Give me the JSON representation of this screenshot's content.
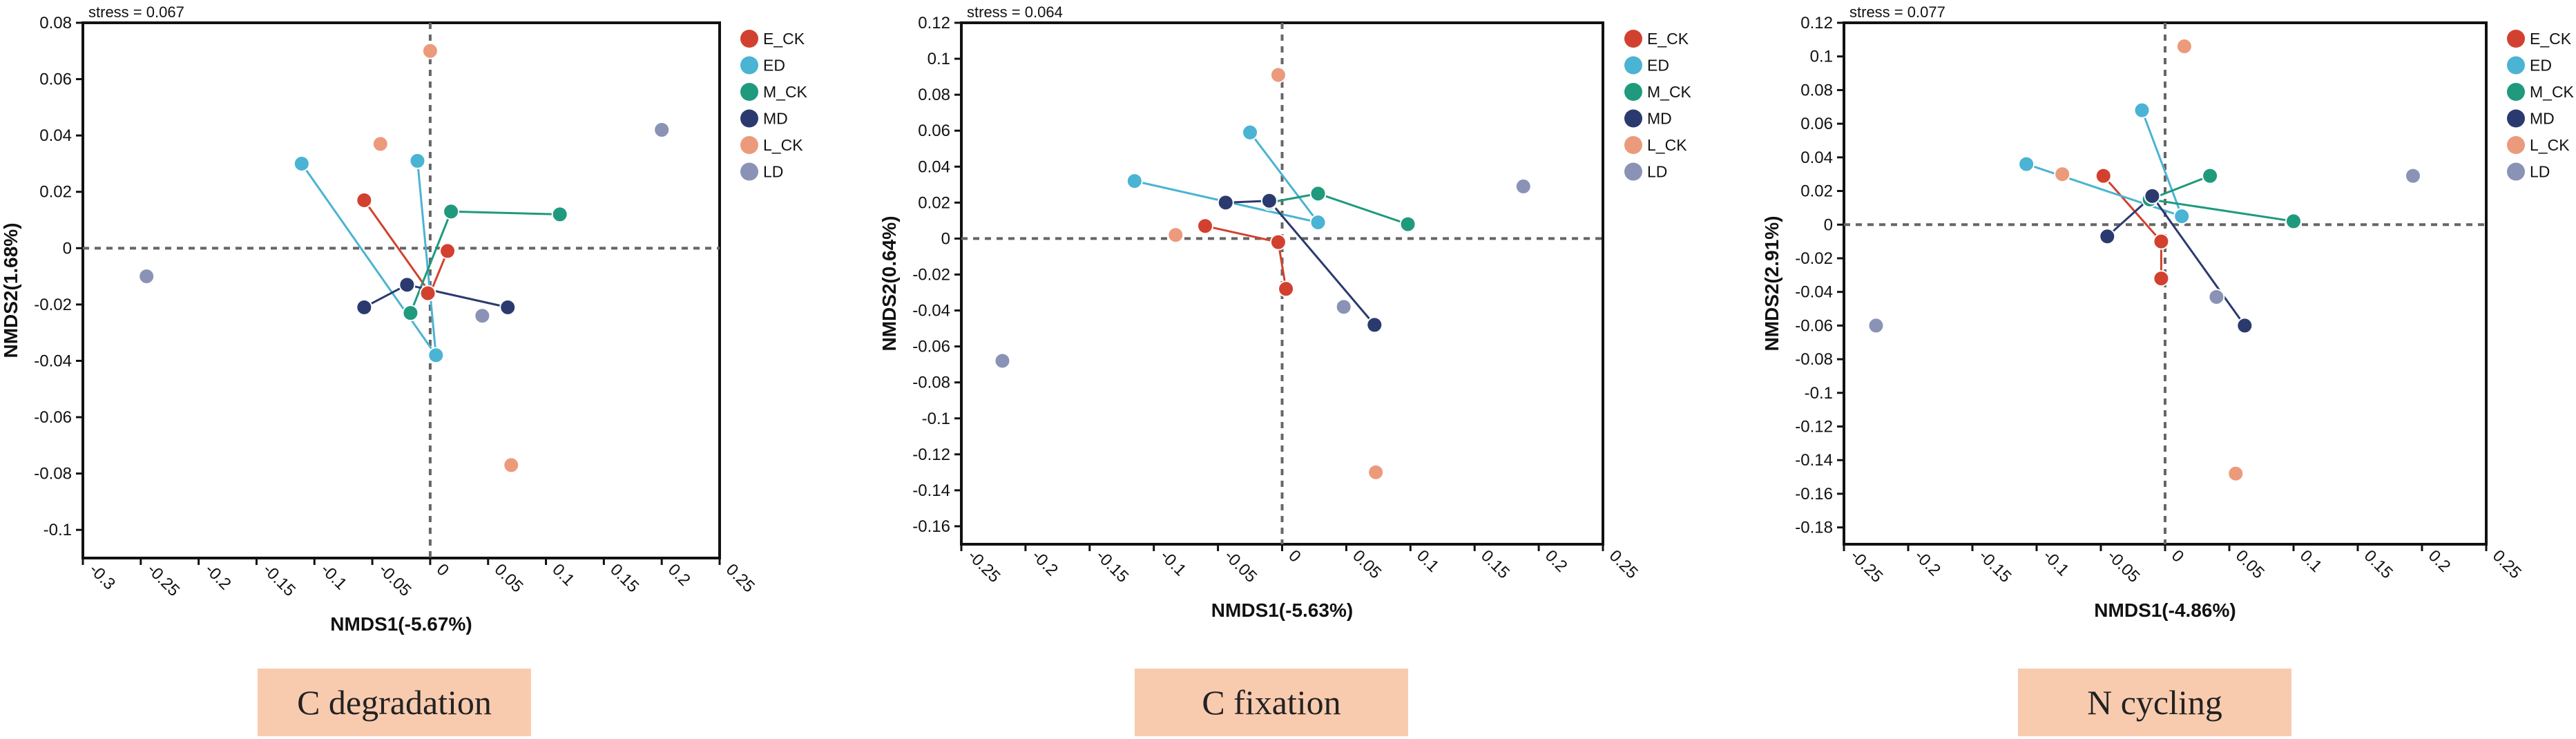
{
  "colors": {
    "E_CK": "#d2412f",
    "ED": "#4bb3d3",
    "M_CK": "#1f9a7c",
    "MD": "#2b3a6e",
    "L_CK": "#ec9a7c",
    "LD": "#8a93b5"
  },
  "chart_data": [
    {
      "type": "scatter",
      "stress_label": "stress = 0.067",
      "xlabel": "NMDS1(-5.67%)",
      "ylabel": "NMDS2(1.68%)",
      "xlim": [
        -0.3,
        0.25
      ],
      "ylim": [
        -0.11,
        0.08
      ],
      "xticks": [
        -0.3,
        -0.25,
        -0.2,
        -0.15,
        -0.1,
        -0.05,
        0,
        0.05,
        0.1,
        0.15,
        0.2,
        0.25
      ],
      "xtick_labels": [
        "-0.3",
        "-0.25",
        "-0.2",
        "-0.15",
        "-0.1",
        "-0.05",
        "0",
        "0.05",
        "0.1",
        "0.15",
        "0.2",
        "0.25"
      ],
      "yticks": [
        0.08,
        0.06,
        0.04,
        0.02,
        0,
        -0.02,
        -0.04,
        -0.06,
        -0.08,
        -0.1
      ],
      "ytick_labels": [
        "0.08",
        "0.06",
        "0.04",
        "0.02",
        "0",
        "-0.02",
        "-0.04",
        "-0.06",
        "-0.08",
        "-0.1"
      ],
      "legend": [
        "E_CK",
        "ED",
        "M_CK",
        "MD",
        "L_CK",
        "LD"
      ],
      "caption": "C degradation",
      "series": [
        {
          "name": "E_CK",
          "centroid": [
            0,
            -0.016
          ],
          "points": [
            [
              -0.057,
              0.017
            ],
            [
              0.015,
              -0.001
            ],
            [
              -0.002,
              -0.016
            ]
          ]
        },
        {
          "name": "ED",
          "centroid": [
            0.005,
            -0.038
          ],
          "points": [
            [
              -0.111,
              0.03
            ],
            [
              -0.011,
              0.031
            ],
            [
              0.005,
              -0.038
            ]
          ]
        },
        {
          "name": "M_CK",
          "centroid": [
            0.018,
            0.013
          ],
          "points": [
            [
              0.018,
              0.013
            ],
            [
              0.112,
              0.012
            ],
            [
              -0.017,
              -0.023
            ]
          ]
        },
        {
          "name": "MD",
          "centroid": [
            -0.02,
            -0.013
          ],
          "points": [
            [
              -0.057,
              -0.021
            ],
            [
              -0.02,
              -0.013
            ],
            [
              0.067,
              -0.021
            ]
          ]
        },
        {
          "name": "L_CK",
          "points": [
            [
              0,
              0.07
            ],
            [
              -0.043,
              0.037
            ],
            [
              0.07,
              -0.077
            ]
          ]
        },
        {
          "name": "LD",
          "points": [
            [
              -0.245,
              -0.01
            ],
            [
              0.2,
              0.042
            ],
            [
              0.045,
              -0.024
            ]
          ]
        }
      ]
    },
    {
      "type": "scatter",
      "stress_label": "stress = 0.064",
      "xlabel": "NMDS1(-5.63%)",
      "ylabel": "NMDS2(0.64%)",
      "xlim": [
        -0.25,
        0.25
      ],
      "ylim": [
        -0.17,
        0.12
      ],
      "xticks": [
        -0.25,
        -0.2,
        -0.15,
        -0.1,
        -0.05,
        0,
        0.05,
        0.1,
        0.15,
        0.2,
        0.25
      ],
      "xtick_labels": [
        "-0.25",
        "-0.2",
        "-0.15",
        "-0.1",
        "-0.05",
        "0",
        "0.05",
        "0.1",
        "0.15",
        "0.2",
        "0.25"
      ],
      "yticks": [
        0.12,
        0.1,
        0.08,
        0.06,
        0.04,
        0.02,
        0,
        -0.02,
        -0.04,
        -0.06,
        -0.08,
        -0.1,
        -0.12,
        -0.14,
        -0.16
      ],
      "ytick_labels": [
        "0.12",
        "0.1",
        "0.08",
        "0.06",
        "0.04",
        "0.02",
        "0",
        "-0.02",
        "-0.04",
        "-0.06",
        "-0.08",
        "-0.1",
        "-0.12",
        "-0.14",
        "-0.16"
      ],
      "legend": [
        "E_CK",
        "ED",
        "M_CK",
        "MD",
        "L_CK",
        "LD"
      ],
      "caption": "C fixation",
      "series": [
        {
          "name": "E_CK",
          "centroid": [
            -0.003,
            -0.002
          ],
          "points": [
            [
              -0.06,
              0.007
            ],
            [
              -0.003,
              -0.002
            ],
            [
              0.003,
              -0.028
            ]
          ]
        },
        {
          "name": "ED",
          "centroid": [
            0.028,
            0.009
          ],
          "points": [
            [
              -0.115,
              0.032
            ],
            [
              -0.025,
              0.059
            ],
            [
              0.028,
              0.009
            ]
          ]
        },
        {
          "name": "M_CK",
          "centroid": [
            0.028,
            0.025
          ],
          "points": [
            [
              0.028,
              0.025
            ],
            [
              0.098,
              0.008
            ],
            [
              -0.01,
              0.02
            ]
          ]
        },
        {
          "name": "MD",
          "centroid": [
            -0.01,
            0.021
          ],
          "points": [
            [
              -0.044,
              0.02
            ],
            [
              -0.01,
              0.021
            ],
            [
              0.072,
              -0.048
            ]
          ]
        },
        {
          "name": "L_CK",
          "points": [
            [
              -0.003,
              0.091
            ],
            [
              -0.083,
              0.002
            ],
            [
              0.073,
              -0.13
            ]
          ]
        },
        {
          "name": "LD",
          "points": [
            [
              -0.218,
              -0.068
            ],
            [
              0.188,
              0.029
            ],
            [
              0.048,
              -0.038
            ]
          ]
        }
      ]
    },
    {
      "type": "scatter",
      "stress_label": "stress = 0.077",
      "xlabel": "NMDS1(-4.86%)",
      "ylabel": "NMDS2(2.91%)",
      "xlim": [
        -0.25,
        0.25
      ],
      "ylim": [
        -0.19,
        0.12
      ],
      "xticks": [
        -0.25,
        -0.2,
        -0.15,
        -0.1,
        -0.05,
        0,
        0.05,
        0.1,
        0.15,
        0.2,
        0.25
      ],
      "xtick_labels": [
        "-0.25",
        "-0.2",
        "-0.15",
        "-0.1",
        "-0.05",
        "0",
        "0.05",
        "0.1",
        "0.15",
        "0.2",
        "0.25"
      ],
      "yticks": [
        0.12,
        0.1,
        0.08,
        0.06,
        0.04,
        0.02,
        0,
        -0.02,
        -0.04,
        -0.06,
        -0.08,
        -0.1,
        -0.12,
        -0.14,
        -0.16,
        -0.18
      ],
      "ytick_labels": [
        "0.12",
        "0.1",
        "0.08",
        "0.06",
        "0.04",
        "0.02",
        "0",
        "-0.02",
        "-0.04",
        "-0.06",
        "-0.08",
        "-0.1",
        "-0.12",
        "-0.14",
        "-0.16",
        "-0.18"
      ],
      "legend": [
        "E_CK",
        "ED",
        "M_CK",
        "MD",
        "L_CK",
        "LD"
      ],
      "caption": "N cycling",
      "series": [
        {
          "name": "E_CK",
          "centroid": [
            -0.003,
            -0.01
          ],
          "points": [
            [
              -0.048,
              0.029
            ],
            [
              -0.003,
              -0.01
            ],
            [
              -0.003,
              -0.032
            ]
          ]
        },
        {
          "name": "ED",
          "centroid": [
            0.013,
            0.005
          ],
          "points": [
            [
              -0.108,
              0.036
            ],
            [
              -0.018,
              0.068
            ],
            [
              0.013,
              0.005
            ]
          ]
        },
        {
          "name": "M_CK",
          "centroid": [
            -0.012,
            0.015
          ],
          "points": [
            [
              0.035,
              0.029
            ],
            [
              0.1,
              0.002
            ],
            [
              -0.012,
              0.015
            ]
          ]
        },
        {
          "name": "MD",
          "centroid": [
            -0.01,
            0.017
          ],
          "points": [
            [
              -0.045,
              -0.007
            ],
            [
              -0.01,
              0.017
            ],
            [
              0.062,
              -0.06
            ]
          ]
        },
        {
          "name": "L_CK",
          "points": [
            [
              0.015,
              0.106
            ],
            [
              -0.08,
              0.03
            ],
            [
              0.055,
              -0.148
            ]
          ]
        },
        {
          "name": "LD",
          "points": [
            [
              -0.225,
              -0.06
            ],
            [
              0.193,
              0.029
            ],
            [
              0.04,
              -0.043
            ]
          ]
        }
      ]
    }
  ]
}
